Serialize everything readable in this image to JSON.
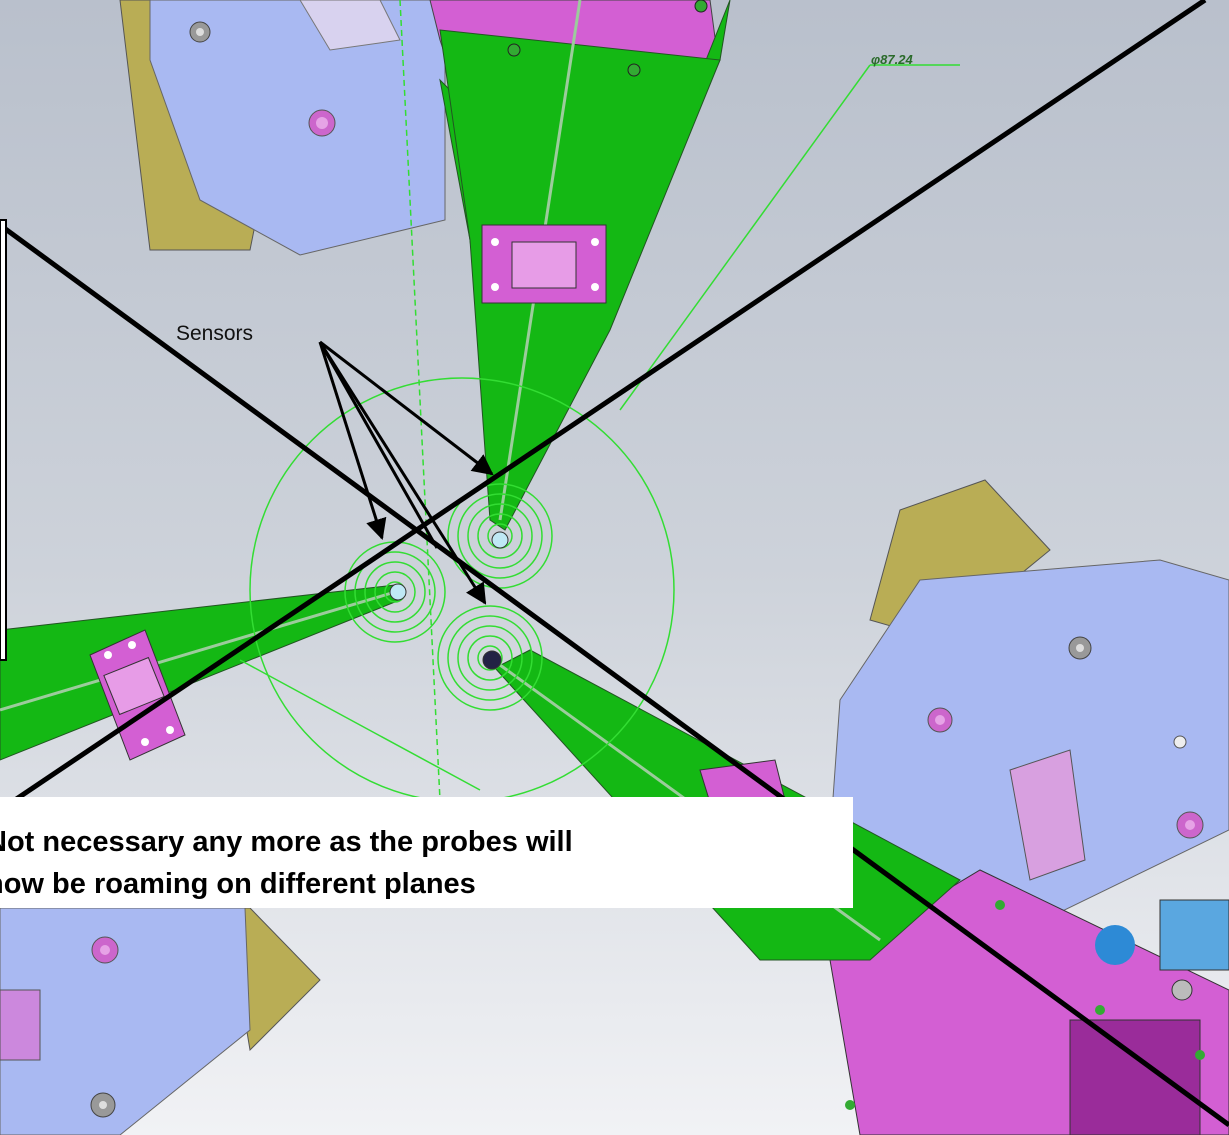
{
  "annotations": {
    "sensors_label": "Sensors",
    "diameter_dimension": "φ87.24"
  },
  "callout": {
    "line1": "Not necessary any more as the probes will",
    "line2": "now be roaming on different planes"
  },
  "colors": {
    "background": "#c9cfd8",
    "probe_green": "#14b814",
    "bracket_pink": "#d35fd3",
    "plate_blue": "#a8b8f4",
    "plate_olive": "#b9ad55",
    "construction_green": "#33dd33"
  }
}
